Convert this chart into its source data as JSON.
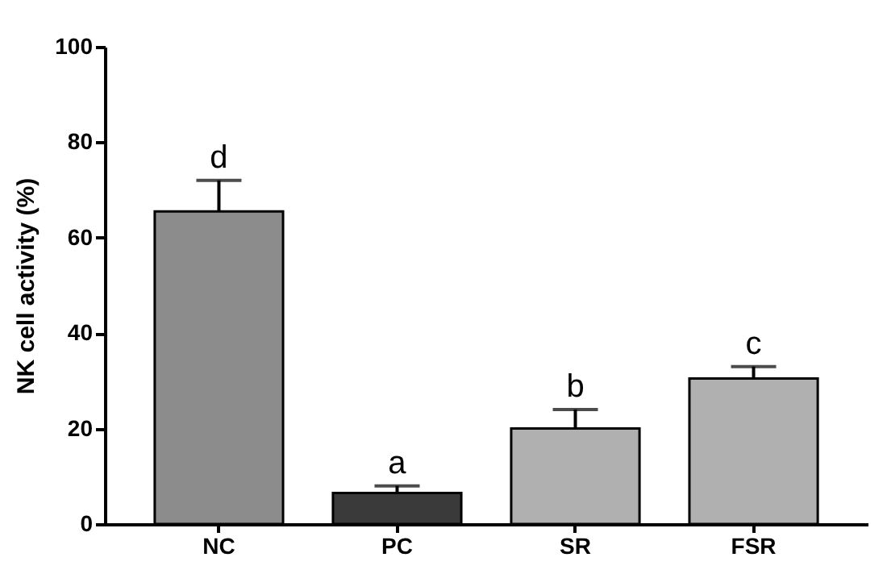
{
  "chart_data": {
    "type": "bar",
    "ylabel": "NK cell activity (%)",
    "categories": [
      "NC",
      "PC",
      "SR",
      "FSR"
    ],
    "values": [
      65.5,
      6.5,
      20,
      30.5
    ],
    "colors": [
      "#8c8c8c",
      "#3a3a3a",
      "#b0b0b0",
      "#b0b0b0"
    ],
    "errors": [
      [
        65.5,
        72
      ],
      [
        6.5,
        8
      ],
      [
        20,
        24
      ],
      [
        30.5,
        33
      ]
    ],
    "annotations": [
      {
        "text": "d",
        "x": "NC",
        "y": 72
      },
      {
        "text": "a",
        "x": "PC",
        "y": 8
      },
      {
        "text": "b",
        "x": "SR",
        "y": 24
      },
      {
        "text": "c",
        "x": "FSR",
        "y": 33
      }
    ],
    "ylim": [
      0,
      100
    ],
    "yticks": [
      0,
      20,
      40,
      60,
      80,
      100
    ],
    "grid": false
  }
}
